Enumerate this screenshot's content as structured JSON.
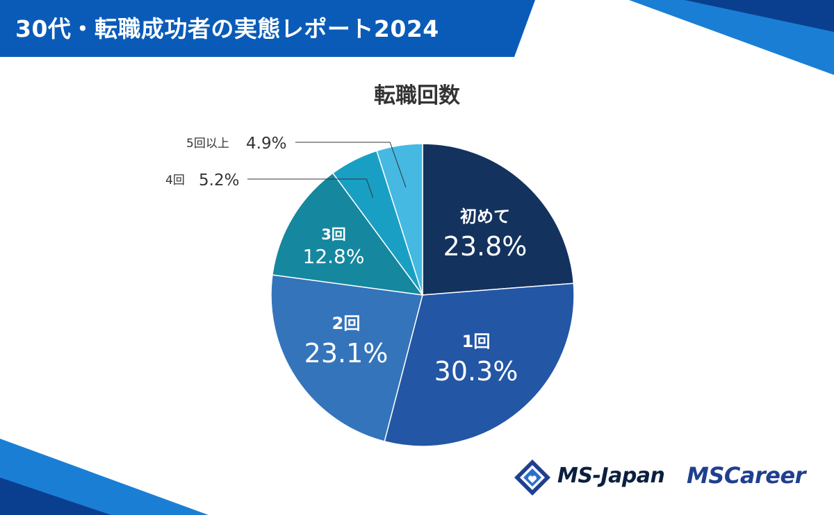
{
  "header": {
    "title": "30代・転職成功者の実態レポート2024"
  },
  "chart_data": {
    "type": "pie",
    "title": "転職回数",
    "unit": "%",
    "slices": [
      {
        "label": "初めて",
        "value": 23.8,
        "value_label": "23.8%",
        "color": "#13325e",
        "text_color": "#ffffff"
      },
      {
        "label": "1回",
        "value": 30.3,
        "value_label": "30.3%",
        "color": "#2356a5",
        "text_color": "#ffffff"
      },
      {
        "label": "2回",
        "value": 23.1,
        "value_label": "23.1%",
        "color": "#3474bb",
        "text_color": "#ffffff"
      },
      {
        "label": "3回",
        "value": 12.8,
        "value_label": "12.8%",
        "color": "#15879f",
        "text_color": "#ffffff"
      },
      {
        "label": "4回",
        "value": 5.2,
        "value_label": "5.2%",
        "color": "#1a9fc4",
        "text_color": "#333333"
      },
      {
        "label": "5回以上",
        "value": 4.9,
        "value_label": "4.9%",
        "color": "#45b9e2",
        "text_color": "#333333"
      }
    ]
  },
  "brand": {
    "company": "MS-Japan",
    "service": "MSCareer"
  },
  "colors": {
    "banner": "#0a5bb8",
    "banner_dark": "#0a3f8f",
    "accent": "#1a7fd4"
  }
}
